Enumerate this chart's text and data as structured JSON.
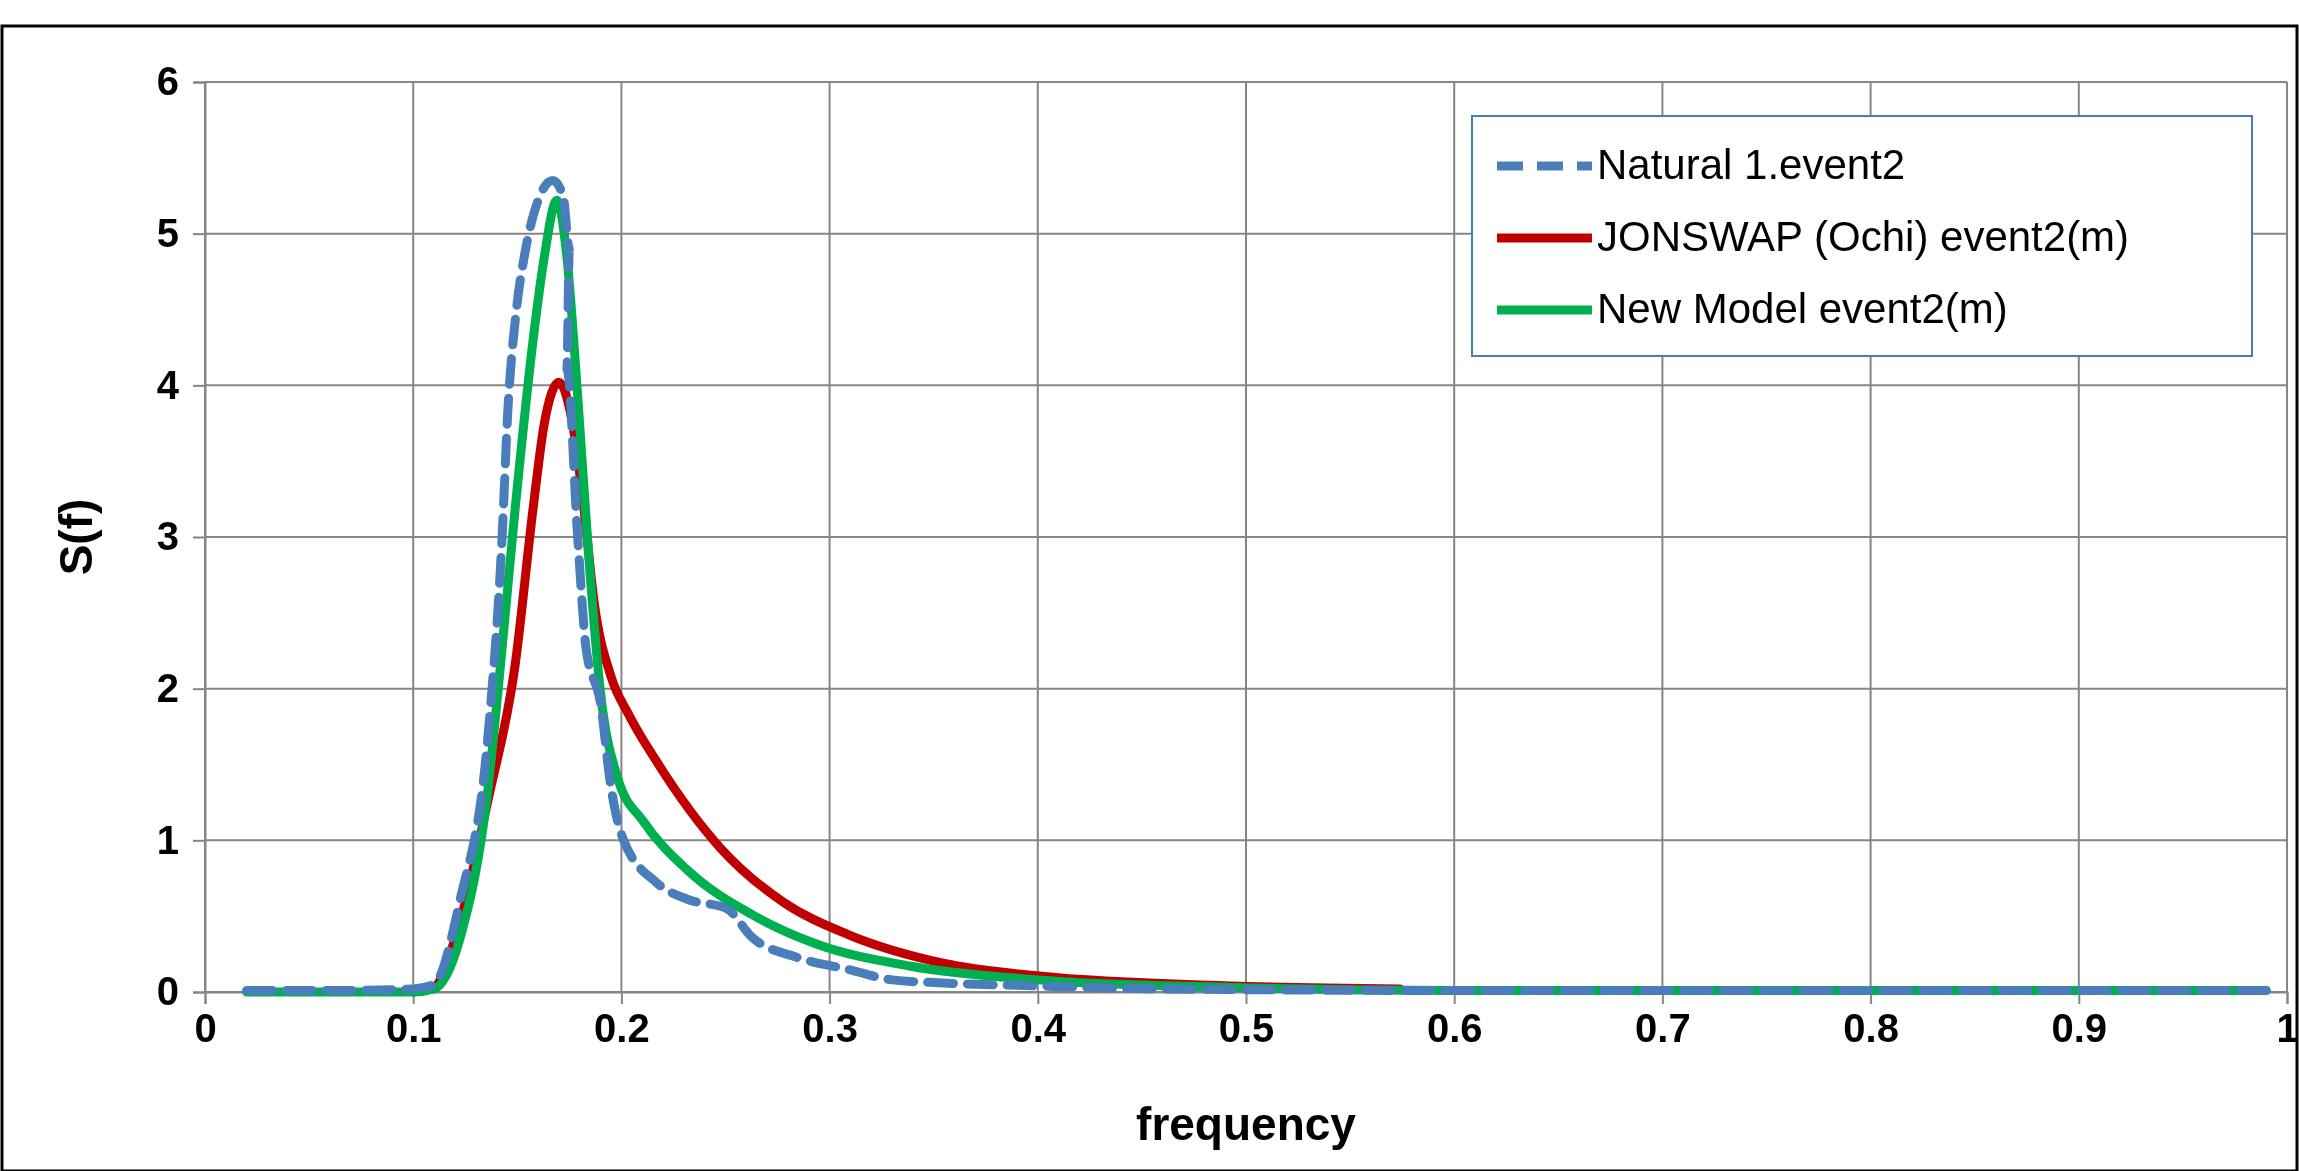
{
  "chart_data": {
    "type": "line",
    "xlabel": "frequency",
    "ylabel": "S(f)",
    "xlim": [
      0,
      1
    ],
    "xticks": [
      0,
      0.1,
      0.2,
      0.3,
      0.4,
      0.5,
      0.6,
      0.7,
      0.8,
      0.9,
      1
    ],
    "ylim": [
      0,
      6
    ],
    "yticks": [
      0,
      1,
      2,
      3,
      4,
      5,
      6
    ],
    "grid": true,
    "legend": "top right",
    "marker": "none",
    "series": [
      {
        "name": "Natural 1.event2",
        "color": "#4a7ebb",
        "line_style": "dashed",
        "x": [
          0.02,
          0.06,
          0.1,
          0.11,
          0.1224,
          0.136,
          0.1427,
          0.1454,
          0.1495,
          0.1535,
          0.16,
          0.167,
          0.172,
          0.175,
          0.1738,
          0.179,
          0.183,
          0.19,
          0.195,
          0.2008,
          0.217,
          0.232,
          0.2506,
          0.2628,
          0.284,
          0.3086,
          0.33,
          0.3545,
          0.4,
          0.4617,
          0.6,
          0.8,
          0.99
        ],
        "values": [
          0.01,
          0.01,
          0.02,
          0.05,
          0.6,
          1.7,
          3.0,
          3.82,
          4.49,
          4.86,
          5.22,
          5.35,
          5.25,
          4.9,
          4.11,
          3.0,
          2.27,
          1.9,
          1.35,
          1.01,
          0.72,
          0.61,
          0.55,
          0.36,
          0.23,
          0.15,
          0.08,
          0.06,
          0.04,
          0.02,
          0.01,
          0.01,
          0.01
        ]
      },
      {
        "name": "JONSWAP (Ochi) event2(m)",
        "color": "#c00000",
        "line_style": "solid",
        "x": [
          0.1,
          0.11,
          0.1224,
          0.136,
          0.149,
          0.1576,
          0.163,
          0.17,
          0.1765,
          0.182,
          0.187,
          0.195,
          0.2035,
          0.2169,
          0.2475,
          0.278,
          0.3086,
          0.3545,
          0.4005,
          0.4924,
          0.574
        ],
        "values": [
          0,
          0.03,
          0.46,
          1.27,
          2.16,
          3.19,
          3.75,
          4.02,
          3.75,
          3.19,
          2.56,
          2.08,
          1.83,
          1.52,
          0.95,
          0.59,
          0.38,
          0.19,
          0.105,
          0.04,
          0.02
        ]
      },
      {
        "name": "New Model event2(m)",
        "color": "#00b050",
        "line_style": "solid",
        "x": [
          0.02,
          0.06,
          0.1,
          0.11,
          0.1224,
          0.136,
          0.1414,
          0.149,
          0.1576,
          0.163,
          0.169,
          0.1738,
          0.179,
          0.1846,
          0.19,
          0.198,
          0.2108,
          0.232,
          0.2628,
          0.293,
          0.339,
          0.4,
          0.4924,
          0.6,
          0.8,
          0.99
        ],
        "values": [
          0,
          0,
          0,
          0.02,
          0.35,
          1.35,
          2.08,
          3.19,
          4.3,
          4.85,
          5.22,
          4.85,
          3.93,
          2.82,
          1.97,
          1.42,
          1.12,
          0.8,
          0.51,
          0.32,
          0.17,
          0.08,
          0.03,
          0.01,
          0.01,
          0.01
        ]
      }
    ]
  }
}
